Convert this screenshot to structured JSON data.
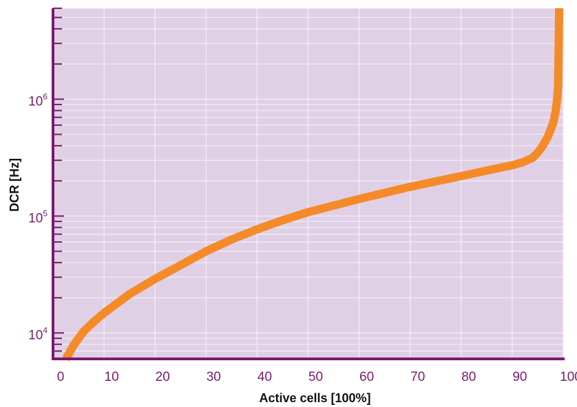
{
  "colors": {
    "plot_bg": "#e0d0e6",
    "axis": "#7a1a6e",
    "grid": "#f4eef6",
    "series": "#f58a28",
    "tick_text": "#7a1a6e",
    "title_text": "#111111"
  },
  "chart_data": {
    "type": "line",
    "xlabel": "Active cells [100%]",
    "ylabel": "DCR [Hz]",
    "x_scale": "linear",
    "y_scale": "log",
    "xlim": [
      0,
      100
    ],
    "ylim": [
      6000,
      6000000
    ],
    "x_ticks": [
      0,
      10,
      20,
      30,
      40,
      50,
      60,
      70,
      80,
      90,
      100
    ],
    "x_tick_labels": [
      "0",
      "10",
      "20",
      "30",
      "40",
      "50",
      "60",
      "70",
      "80",
      "90",
      "100"
    ],
    "y_major_ticks": [
      {
        "value": 10000,
        "base": "10",
        "exp": "4"
      },
      {
        "value": 100000,
        "base": "10",
        "exp": "5"
      },
      {
        "value": 1000000,
        "base": "10",
        "exp": "6"
      }
    ],
    "grid": true,
    "series": [
      {
        "x": [
          2.5,
          3,
          4,
          5,
          6,
          8,
          10,
          15,
          20,
          25,
          30,
          35,
          40,
          45,
          50,
          55,
          60,
          65,
          70,
          75,
          80,
          85,
          90,
          92,
          94,
          95,
          96,
          97,
          98,
          98.5,
          98.8,
          99,
          99.1,
          99.2
        ],
        "y": [
          6000,
          6500,
          7800,
          9000,
          10300,
          12500,
          14800,
          21500,
          29000,
          38000,
          50000,
          63000,
          77000,
          92000,
          108000,
          123000,
          140000,
          158000,
          178000,
          198000,
          220000,
          245000,
          272000,
          288000,
          315000,
          348000,
          400000,
          480000,
          620000,
          780000,
          1000000,
          1300000,
          2500000,
          6000000
        ]
      }
    ]
  }
}
